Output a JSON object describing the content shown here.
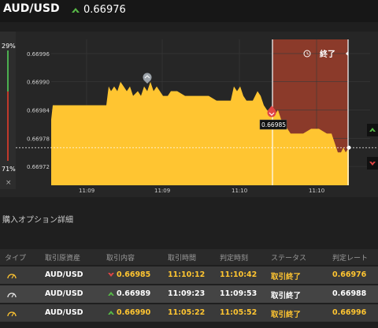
{
  "header": {
    "pair": "AUD/USD",
    "price": "0.66976",
    "arrow_icon": "up-arrow-icon"
  },
  "chart_panel": {
    "pct_top": "29%",
    "pct_bottom": "71%",
    "close_glyph": "×",
    "end_label": "終了",
    "price_tag": "0.66985"
  },
  "chart_data": {
    "type": "area",
    "y_ticks": [
      "0.66996",
      "0.66990",
      "0.66984",
      "0.66978",
      "0.66972"
    ],
    "x_ticks": [
      "11:09",
      "11:09",
      "11:10",
      "11:10"
    ],
    "ylim": [
      0.66968,
      0.66999
    ],
    "series": [
      {
        "color": "#ffc531",
        "values": [
          [
            0,
            0.66982
          ],
          [
            2,
            0.66985
          ],
          [
            12,
            0.66985
          ],
          [
            40,
            0.66985
          ],
          [
            70,
            0.66985
          ],
          [
            73,
            0.66989
          ],
          [
            76,
            0.66988
          ],
          [
            80,
            0.66989
          ],
          [
            84,
            0.66988
          ],
          [
            88,
            0.6699
          ],
          [
            92,
            0.66989
          ],
          [
            96,
            0.66988
          ],
          [
            100,
            0.66989
          ],
          [
            104,
            0.66987
          ],
          [
            110,
            0.66988
          ],
          [
            114,
            0.66987
          ],
          [
            118,
            0.66989
          ],
          [
            122,
            0.66988
          ],
          [
            126,
            0.6699
          ],
          [
            130,
            0.66988
          ],
          [
            134,
            0.66989
          ],
          [
            138,
            0.66988
          ],
          [
            142,
            0.66987
          ],
          [
            148,
            0.66987
          ],
          [
            152,
            0.66988
          ],
          [
            160,
            0.66988
          ],
          [
            170,
            0.66987
          ],
          [
            190,
            0.66987
          ],
          [
            200,
            0.66987
          ],
          [
            210,
            0.66986
          ],
          [
            228,
            0.66986
          ],
          [
            232,
            0.66989
          ],
          [
            236,
            0.66988
          ],
          [
            240,
            0.66989
          ],
          [
            244,
            0.66987
          ],
          [
            248,
            0.66986
          ],
          [
            256,
            0.66986
          ],
          [
            262,
            0.66988
          ],
          [
            266,
            0.66987
          ],
          [
            270,
            0.66985
          ],
          [
            274,
            0.66984
          ],
          [
            280,
            0.66983
          ],
          [
            284,
            0.66983
          ],
          [
            288,
            0.66984
          ],
          [
            292,
            0.66982
          ],
          [
            296,
            0.66981
          ],
          [
            300,
            0.6698
          ],
          [
            304,
            0.66979
          ],
          [
            312,
            0.66979
          ],
          [
            320,
            0.66979
          ],
          [
            330,
            0.6698
          ],
          [
            340,
            0.6698
          ],
          [
            350,
            0.66979
          ],
          [
            356,
            0.66979
          ],
          [
            360,
            0.66977
          ],
          [
            364,
            0.66975
          ],
          [
            368,
            0.66975
          ],
          [
            371,
            0.66976
          ],
          [
            374,
            0.66975
          ],
          [
            378,
            0.66976
          ]
        ]
      }
    ],
    "entry_price": 0.66985,
    "current_price": 0.66976
  },
  "details": {
    "title": "購入オプション詳細"
  },
  "table": {
    "columns": [
      "タイプ",
      "取引原資産",
      "取引内容",
      "取引時間",
      "判定時刻",
      "ステータス",
      "判定レート"
    ],
    "rows": [
      {
        "asset": "AUD/USD",
        "dir": "down",
        "rate": "0.66985",
        "time": "11:10:12",
        "judge": "11:10:42",
        "status": "取引終了",
        "final": "0.66976",
        "highlight": true
      },
      {
        "asset": "AUD/USD",
        "dir": "up",
        "rate": "0.66989",
        "time": "11:09:23",
        "judge": "11:09:53",
        "status": "取引終了",
        "final": "0.66988",
        "highlight": false
      },
      {
        "asset": "AUD/USD",
        "dir": "up",
        "rate": "0.66990",
        "time": "11:05:22",
        "judge": "11:05:52",
        "status": "取引終了",
        "final": "0.66996",
        "highlight": true
      }
    ]
  },
  "colors": {
    "yellow": "#ffc531",
    "up": "#58b947",
    "down": "#e04545",
    "period": "#8b3a2a"
  }
}
